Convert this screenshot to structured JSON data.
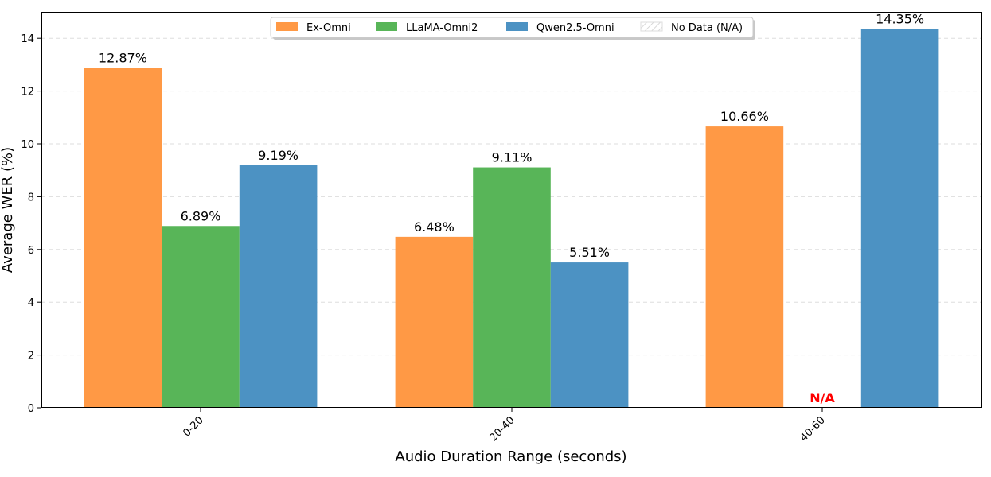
{
  "chart_data": {
    "type": "bar",
    "title": "",
    "xlabel": "Audio Duration Range (seconds)",
    "ylabel": "Average WER (%)",
    "categories": [
      "0-20",
      "20-40",
      "40-60"
    ],
    "ylim": [
      0,
      15
    ],
    "yticks": [
      0,
      2,
      4,
      6,
      8,
      10,
      12,
      14
    ],
    "grid": true,
    "legend_position": "top-center",
    "series": [
      {
        "name": "Ex-Omni",
        "color": "#ff9945",
        "values": [
          12.87,
          6.48,
          10.66
        ],
        "labels": [
          "12.87%",
          "6.48%",
          "10.66%"
        ]
      },
      {
        "name": "LLaMA-Omni2",
        "color": "#58b558",
        "values": [
          6.89,
          9.11,
          null
        ],
        "labels": [
          "6.89%",
          "9.11%",
          "N/A"
        ]
      },
      {
        "name": "Qwen2.5-Omni",
        "color": "#4c92c3",
        "values": [
          9.19,
          5.51,
          14.35
        ],
        "labels": [
          "9.19%",
          "5.51%",
          "14.35%"
        ]
      }
    ],
    "legend": [
      "Ex-Omni",
      "LLaMA-Omni2",
      "Qwen2.5-Omni",
      "No Data (N/A)"
    ],
    "na_color": "#ff0000",
    "na_label": "N/A"
  }
}
